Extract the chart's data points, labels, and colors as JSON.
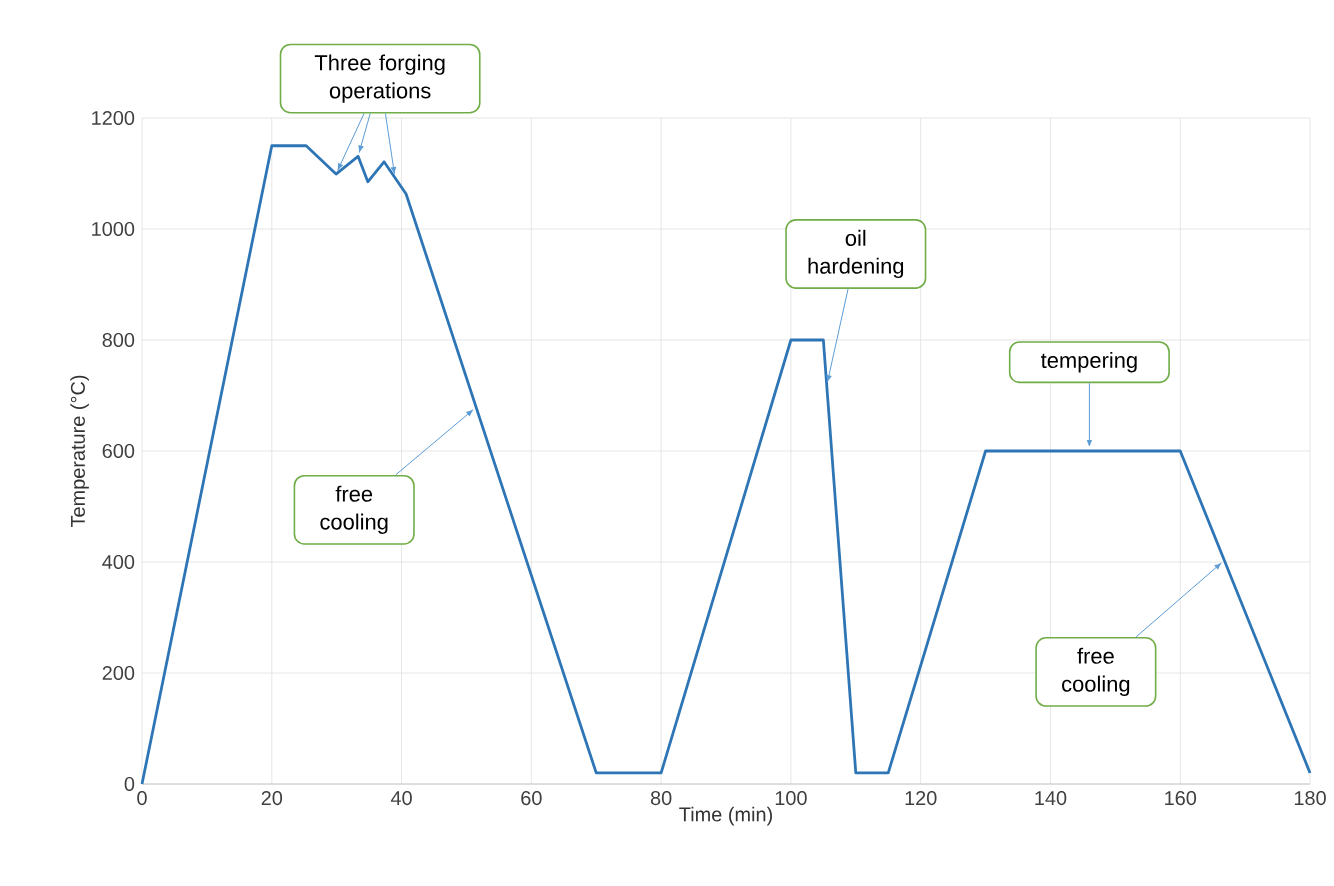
{
  "chart_data": {
    "type": "line",
    "xlabel": "Time (min)",
    "ylabel": "Temperature (°C)",
    "xlim": [
      0,
      180
    ],
    "xticks": [
      0,
      20,
      40,
      60,
      80,
      100,
      120,
      140,
      160,
      180
    ],
    "ylim": [
      0,
      1200
    ],
    "yticks": [
      0,
      200,
      400,
      600,
      800,
      1000,
      1200
    ],
    "grid": true,
    "marker": "none",
    "line_style": "solid",
    "series": [
      {
        "color": "#2e75b6",
        "x": [
          0,
          20,
          25.3,
          29.9,
          33.3,
          34.8,
          37.3,
          40.7,
          70,
          80,
          100,
          105,
          110,
          115,
          130,
          160,
          180
        ],
        "values": [
          0,
          1150,
          1150,
          1099,
          1131,
          1085,
          1121,
          1063,
          20,
          20,
          800,
          800,
          20,
          20,
          600,
          600,
          20
        ]
      }
    ],
    "annotations": [
      {
        "text": "Three forging operations",
        "x": 33.3,
        "y": 1131
      },
      {
        "text": "free cooling",
        "x": 51.5,
        "y": 679
      },
      {
        "text": "oil hardening",
        "x": 105.5,
        "y": 717
      },
      {
        "text": "tempering",
        "x": 146,
        "y": 600
      },
      {
        "text": "free cooling",
        "x": 166.8,
        "y": 403
      }
    ]
  }
}
